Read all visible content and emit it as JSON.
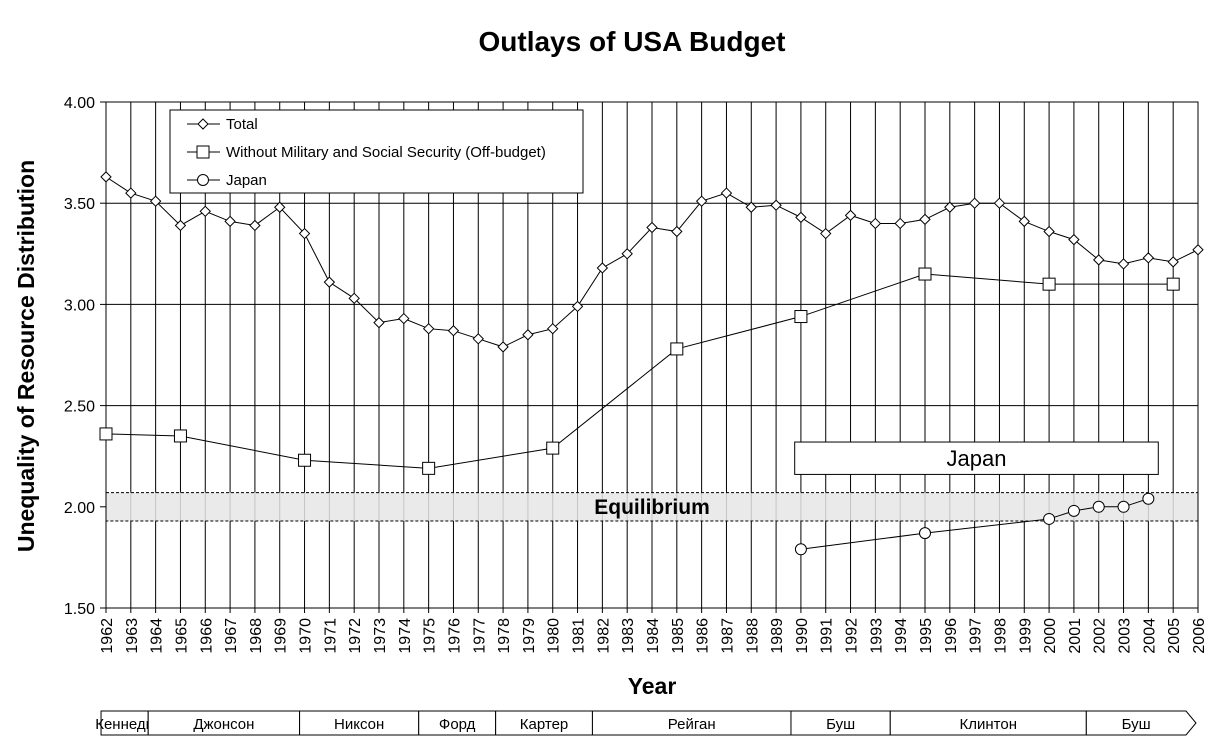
{
  "chart_data": {
    "type": "line",
    "title": "Outlays of USA Budget",
    "xlabel": "Year",
    "ylabel": "Unequality of Resource Distribution",
    "xlim": [
      1962,
      2006
    ],
    "ylim": [
      1.5,
      4.0
    ],
    "yticks": [
      "1.50",
      "2.00",
      "2.50",
      "3.00",
      "3.50",
      "4.00"
    ],
    "grid": "vertical lines at every year; horizontal lines at 2.50, 3.00, 3.50",
    "legend_position": "top-left",
    "series": [
      {
        "name": "Total",
        "marker": "diamond",
        "x": [
          1962,
          1963,
          1964,
          1965,
          1966,
          1967,
          1968,
          1969,
          1970,
          1971,
          1972,
          1973,
          1974,
          1975,
          1976,
          1977,
          1978,
          1979,
          1980,
          1981,
          1982,
          1983,
          1984,
          1985,
          1986,
          1987,
          1988,
          1989,
          1990,
          1991,
          1992,
          1993,
          1994,
          1995,
          1996,
          1997,
          1998,
          1999,
          2000,
          2001,
          2002,
          2003,
          2004,
          2005,
          2006
        ],
        "y": [
          3.63,
          3.55,
          3.51,
          3.39,
          3.46,
          3.41,
          3.39,
          3.48,
          3.35,
          3.11,
          3.03,
          2.91,
          2.93,
          2.88,
          2.87,
          2.83,
          2.79,
          2.85,
          2.88,
          2.99,
          3.18,
          3.25,
          3.38,
          3.36,
          3.51,
          3.55,
          3.48,
          3.49,
          3.43,
          3.35,
          3.44,
          3.4,
          3.4,
          3.42,
          3.48,
          3.5,
          3.5,
          3.41,
          3.36,
          3.32,
          3.22,
          3.2,
          3.23,
          3.21,
          3.27
        ]
      },
      {
        "name": "Without Military and Social Security (Off-budget)",
        "marker": "square",
        "x": [
          1962,
          1965,
          1970,
          1975,
          1980,
          1985,
          1990,
          1995,
          2000,
          2005
        ],
        "y": [
          2.36,
          2.35,
          2.23,
          2.19,
          2.29,
          2.78,
          2.94,
          3.15,
          3.1,
          3.1
        ]
      },
      {
        "name": "Japan",
        "marker": "circle",
        "x": [
          1990,
          1995,
          2000,
          2001,
          2002,
          2003,
          2004
        ],
        "y": [
          1.79,
          1.87,
          1.94,
          1.98,
          2.0,
          2.0,
          2.04
        ]
      }
    ],
    "equilibrium_band": {
      "label": "Equilibrium",
      "y_low": 1.93,
      "y_high": 2.07
    },
    "japan_box": {
      "label": "Japan",
      "x_start": 1989.75,
      "x_end": 2004.4,
      "y_low": 2.16,
      "y_high": 2.32
    },
    "eras": [
      {
        "label": "Кеннеди",
        "start": 1961.8,
        "end": 1963.7
      },
      {
        "label": "Джонсон",
        "start": 1963.7,
        "end": 1969.8
      },
      {
        "label": "Никсон",
        "start": 1969.8,
        "end": 1974.6
      },
      {
        "label": "Форд",
        "start": 1974.6,
        "end": 1977.7
      },
      {
        "label": "Картер",
        "start": 1977.7,
        "end": 1981.6
      },
      {
        "label": "Рейган",
        "start": 1981.6,
        "end": 1989.6
      },
      {
        "label": "Буш",
        "start": 1989.6,
        "end": 1993.6
      },
      {
        "label": "Клинтон",
        "start": 1993.6,
        "end": 2001.5
      },
      {
        "label": "Буш",
        "start": 2001.5,
        "end": 2006.9
      }
    ]
  }
}
